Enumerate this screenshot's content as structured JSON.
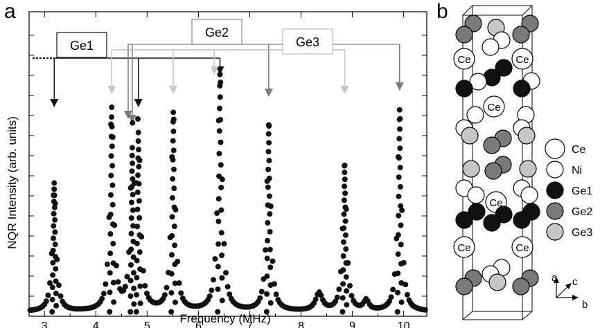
{
  "panel_a_label": "a",
  "panel_b_label": "b",
  "colors": {
    "ge1": "#111111",
    "ge2": "#7a7a7a",
    "ge3": "#c6c6c6",
    "ni": "#ffffff",
    "ce": "#ffffff",
    "axis": "#000000"
  },
  "chart_data": {
    "type": "scatter",
    "title": "",
    "xlabel": "Frequency (MHz)",
    "ylabel": "NQR Intensity (arb. units)",
    "xlim": [
      2.7,
      10.45
    ],
    "ylim": [
      0,
      1.0
    ],
    "x_ticks": [
      3,
      4,
      5,
      6,
      7,
      8,
      9,
      10
    ],
    "x_tick_labels": [
      "3",
      "4",
      "5",
      "6",
      "7",
      "8",
      "9",
      "10"
    ],
    "y_tick_labels_shown": false,
    "grid": false,
    "peaks": [
      {
        "center": 3.19,
        "height": 0.51,
        "width": 0.045
      },
      {
        "center": 4.31,
        "height": 0.81,
        "width": 0.045
      },
      {
        "center": 4.71,
        "height": 0.65,
        "width": 0.04
      },
      {
        "center": 4.83,
        "height": 0.71,
        "width": 0.045
      },
      {
        "center": 5.51,
        "height": 0.79,
        "width": 0.045
      },
      {
        "center": 6.42,
        "height": 0.94,
        "width": 0.05
      },
      {
        "center": 7.37,
        "height": 0.74,
        "width": 0.045
      },
      {
        "center": 8.35,
        "height": 0.07,
        "width": 0.08
      },
      {
        "center": 8.85,
        "height": 0.58,
        "width": 0.045
      },
      {
        "center": 9.92,
        "height": 0.8,
        "width": 0.045
      },
      {
        "center": 9.27,
        "height": 0.04,
        "width": 0.06
      }
    ],
    "baseline": 0.012,
    "point_step_mhz": 0.035,
    "assignment_groups": [
      {
        "label": "Ge1",
        "arrow_color": "#111111",
        "line_color": "#111111",
        "arrow_x": [
          3.19,
          4.83,
          6.42
        ]
      },
      {
        "label": "Ge2",
        "arrow_color": "#7a7a7a",
        "line_color": "#9a9a9a",
        "arrow_x": [
          4.63,
          4.71,
          7.37,
          9.92
        ]
      },
      {
        "label": "Ge3",
        "arrow_color": "#c6c6c6",
        "line_color": "#bdbdbd",
        "arrow_x": [
          4.31,
          5.51,
          6.31,
          8.85
        ]
      }
    ]
  },
  "structure": {
    "legend": [
      {
        "label": "Ce",
        "fill": "#ffffff"
      },
      {
        "label": "Ni",
        "fill": "#ffffff"
      },
      {
        "label": "Ge1",
        "fill": "#111111"
      },
      {
        "label": "Ge2",
        "fill": "#7a7a7a"
      },
      {
        "label": "Ge3",
        "fill": "#c6c6c6"
      }
    ],
    "ce_label": "Ce",
    "axis_labels": {
      "a": "a",
      "b": "b",
      "c": "c"
    }
  }
}
